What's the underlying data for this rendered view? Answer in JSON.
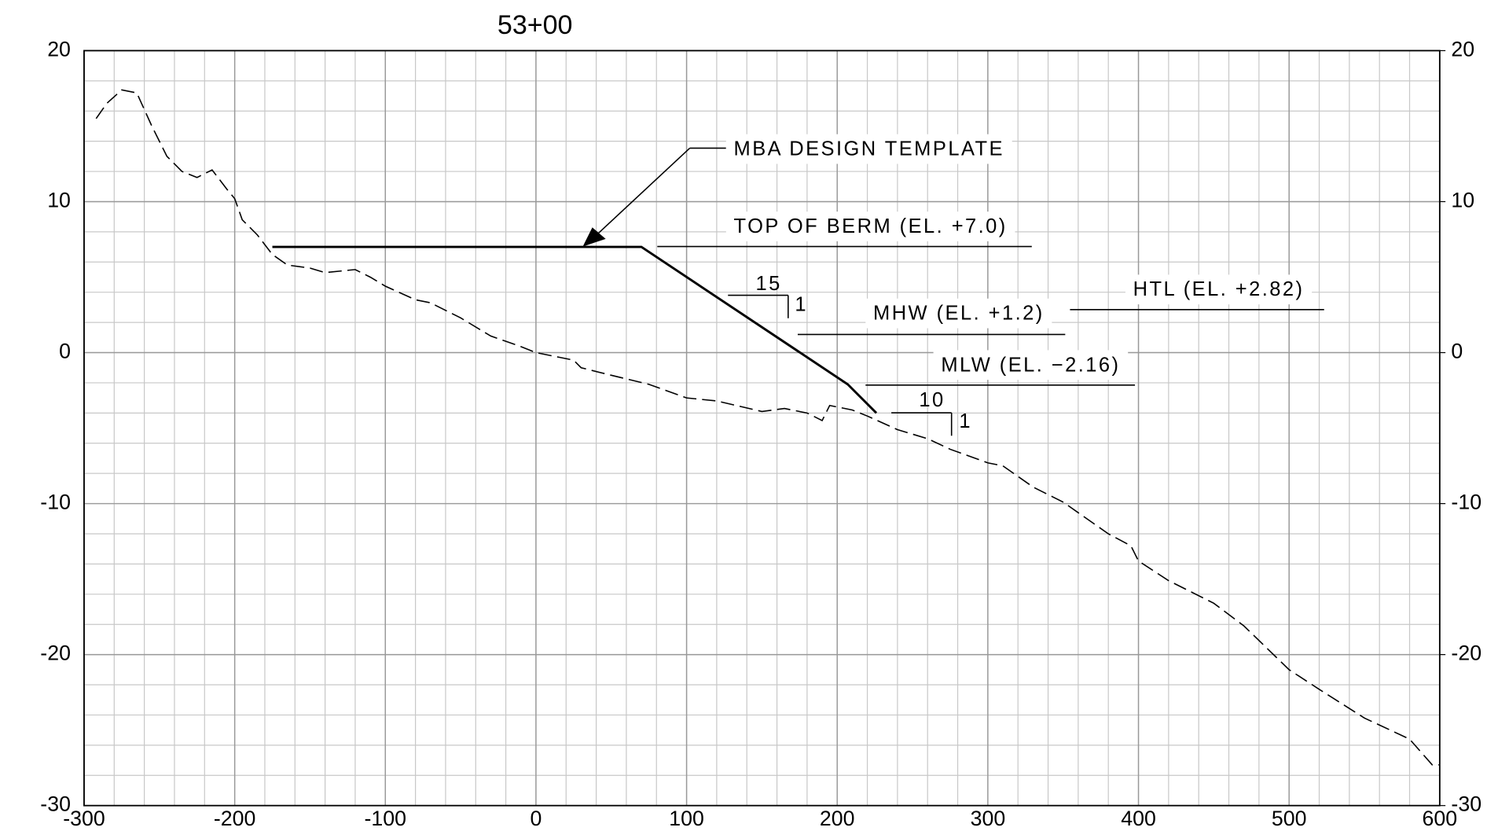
{
  "chart_data": {
    "type": "line",
    "title": "53+00",
    "xlim": [
      -300,
      600
    ],
    "xticks": [
      -300,
      -200,
      -100,
      0,
      100,
      200,
      300,
      400,
      500,
      600
    ],
    "ylim": [
      -30,
      20
    ],
    "yticks": [
      -30,
      -20,
      -10,
      0,
      10,
      20
    ],
    "y2lim": [
      -30,
      20
    ],
    "y2ticks": [
      -30,
      -20,
      -10,
      0,
      10,
      20
    ],
    "grid": true,
    "xminor": 20,
    "yminor": 2,
    "series": [
      {
        "color": "#000000",
        "dashed": true,
        "x": [
          -292,
          -285,
          -275,
          -265,
          -255,
          -245,
          -240,
          -235,
          -225,
          -215,
          -205,
          -200,
          -195,
          -185,
          -175,
          -165,
          -150,
          -140,
          -120,
          -110,
          -100,
          -80,
          -70,
          -50,
          -30,
          -10,
          0,
          15,
          25,
          30,
          50,
          75,
          100,
          120,
          150,
          165,
          180,
          190,
          195,
          210,
          220,
          240,
          260,
          275,
          300,
          310,
          330,
          350,
          380,
          395,
          400,
          420,
          450,
          470,
          500,
          520,
          550,
          580,
          595,
          600
        ],
        "values": [
          15.5,
          16.5,
          17.4,
          17.2,
          15,
          13,
          12.5,
          12,
          11.6,
          12.1,
          10.8,
          10.2,
          8.8,
          7.8,
          6.5,
          5.8,
          5.6,
          5.3,
          5.5,
          5.0,
          4.4,
          3.5,
          3.3,
          2.3,
          1.1,
          0.4,
          0,
          -0.3,
          -0.5,
          -1.0,
          -1.5,
          -2.1,
          -3.0,
          -3.2,
          -3.9,
          -3.7,
          -4.0,
          -4.5,
          -3.5,
          -3.8,
          -4.2,
          -5.1,
          -5.7,
          -6.4,
          -7.3,
          -7.5,
          -8.9,
          -9.9,
          -12.0,
          -12.8,
          -13.8,
          -15.1,
          -16.6,
          -18.1,
          -21.0,
          -22.3,
          -24.2,
          -25.6,
          -27.3,
          -27.3
        ]
      },
      {
        "color": "#000000",
        "dashed": false,
        "x": [
          -175,
          70,
          207,
          226
        ],
        "values": [
          7,
          7,
          -2.1,
          -4.0
        ]
      }
    ],
    "annotations": [
      "MBA DESIGN TEMPLATE",
      "TOP OF BERM (EL. +7.0)",
      "15",
      "1",
      "MHW (EL. +1.2)",
      "HTL (EL. +2.82)",
      "MLW (EL. −2.16)",
      "10",
      "1"
    ]
  }
}
